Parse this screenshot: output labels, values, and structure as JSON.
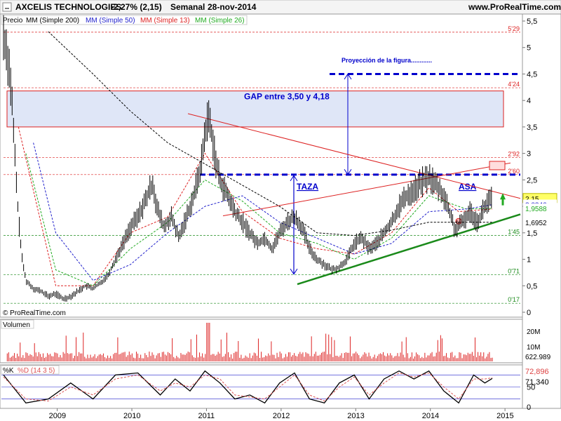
{
  "header": {
    "title": "AXCELIS TECHNOLOGIES",
    "change": "-2,27% (2,15)",
    "period": "Semanal",
    "date": "28-nov-2014",
    "site": "www.ProRealTime.com"
  },
  "legend_main": {
    "precio": "Precio",
    "mm200": "MM (Simple 200)",
    "mm50": "MM (Simple 50)",
    "mm13": "MM (Simple 13)",
    "mm26": "MM (Simple 26)"
  },
  "copyright": "© ProRealTime.com",
  "volume_label": "Volumen",
  "stoch_label_k": "%K",
  "stoch_label_d": "%D (14 3 5)",
  "colors": {
    "price": "#000000",
    "mm200": "#000000",
    "mm50": "#2222cc",
    "mm13": "#dd2222",
    "mm26": "#22aa22",
    "resistance": "#dd2222",
    "support": "#1a8a1a",
    "dashed_blue": "#0000cc",
    "gap_fill": "#dfe6f7",
    "gap_border": "#dd2222"
  },
  "chart_data": [
    {
      "type": "line",
      "panel": "price",
      "x_axis": {
        "labels": [
          "2009",
          "2010",
          "2011",
          "2012",
          "2013",
          "2014",
          "2015"
        ]
      },
      "y_axis": {
        "min": 0,
        "max": 5.5,
        "ticks": [
          "5,5",
          "5",
          "4,5",
          "4",
          "3,5",
          "3",
          "2,5",
          "2",
          "1,5",
          "1",
          "0,5",
          "0"
        ]
      },
      "price_series": [
        [
          2008.3,
          5.2
        ],
        [
          2008.35,
          4.9
        ],
        [
          2008.4,
          4.3
        ],
        [
          2008.45,
          3.0
        ],
        [
          2008.5,
          1.8
        ],
        [
          2008.55,
          1.0
        ],
        [
          2008.6,
          0.6
        ],
        [
          2008.7,
          0.45
        ],
        [
          2008.8,
          0.4
        ],
        [
          2008.9,
          0.3
        ],
        [
          2009.0,
          0.35
        ],
        [
          2009.1,
          0.25
        ],
        [
          2009.2,
          0.3
        ],
        [
          2009.3,
          0.4
        ],
        [
          2009.4,
          0.5
        ],
        [
          2009.5,
          0.45
        ],
        [
          2009.6,
          0.55
        ],
        [
          2009.7,
          0.7
        ],
        [
          2009.8,
          1.0
        ],
        [
          2009.9,
          1.3
        ],
        [
          2010.0,
          1.6
        ],
        [
          2010.1,
          1.8
        ],
        [
          2010.2,
          2.1
        ],
        [
          2010.3,
          2.45
        ],
        [
          2010.35,
          2.0
        ],
        [
          2010.45,
          1.6
        ],
        [
          2010.55,
          1.8
        ],
        [
          2010.65,
          1.4
        ],
        [
          2010.75,
          1.8
        ],
        [
          2010.85,
          2.2
        ],
        [
          2010.95,
          2.8
        ],
        [
          2011.0,
          3.4
        ],
        [
          2011.05,
          3.7
        ],
        [
          2011.1,
          3.3
        ],
        [
          2011.15,
          2.8
        ],
        [
          2011.2,
          2.5
        ],
        [
          2011.3,
          2.2
        ],
        [
          2011.4,
          1.9
        ],
        [
          2011.5,
          1.7
        ],
        [
          2011.6,
          1.5
        ],
        [
          2011.7,
          1.3
        ],
        [
          2011.8,
          1.4
        ],
        [
          2011.9,
          1.2
        ],
        [
          2012.0,
          1.5
        ],
        [
          2012.1,
          1.7
        ],
        [
          2012.2,
          1.8
        ],
        [
          2012.3,
          1.6
        ],
        [
          2012.4,
          1.2
        ],
        [
          2012.5,
          1.0
        ],
        [
          2012.6,
          0.9
        ],
        [
          2012.7,
          0.8
        ],
        [
          2012.8,
          0.85
        ],
        [
          2012.9,
          1.0
        ],
        [
          2013.0,
          1.3
        ],
        [
          2013.1,
          1.4
        ],
        [
          2013.2,
          1.2
        ],
        [
          2013.3,
          1.3
        ],
        [
          2013.4,
          1.5
        ],
        [
          2013.5,
          1.7
        ],
        [
          2013.6,
          2.0
        ],
        [
          2013.7,
          2.2
        ],
        [
          2013.8,
          2.3
        ],
        [
          2013.9,
          2.45
        ],
        [
          2014.0,
          2.55
        ],
        [
          2014.1,
          2.4
        ],
        [
          2014.2,
          2.2
        ],
        [
          2014.3,
          1.8
        ],
        [
          2014.35,
          1.55
        ],
        [
          2014.45,
          1.7
        ],
        [
          2014.55,
          1.9
        ],
        [
          2014.65,
          1.7
        ],
        [
          2014.75,
          2.0
        ],
        [
          2014.8,
          2.1
        ],
        [
          2014.85,
          2.15
        ]
      ],
      "sma_series": [
        {
          "name": "MM (Simple 13)",
          "values": [
            [
              2008.5,
              3.5
            ],
            [
              2009.0,
              0.5
            ],
            [
              2009.5,
              0.5
            ],
            [
              2010.0,
              1.5
            ],
            [
              2010.5,
              1.8
            ],
            [
              2011.0,
              3.0
            ],
            [
              2011.5,
              1.9
            ],
            [
              2012.0,
              1.4
            ],
            [
              2012.5,
              1.2
            ],
            [
              2013.0,
              1.1
            ],
            [
              2013.5,
              1.5
            ],
            [
              2014.0,
              2.35
            ],
            [
              2014.4,
              1.9
            ],
            [
              2014.85,
              1.95
            ]
          ]
        },
        {
          "name": "MM (Simple 26)",
          "values": [
            [
              2008.6,
              3.0
            ],
            [
              2009.0,
              0.8
            ],
            [
              2009.5,
              0.5
            ],
            [
              2010.0,
              1.2
            ],
            [
              2010.5,
              1.7
            ],
            [
              2011.0,
              2.5
            ],
            [
              2011.5,
              2.1
            ],
            [
              2012.0,
              1.5
            ],
            [
              2012.5,
              1.3
            ],
            [
              2013.0,
              1.0
            ],
            [
              2013.5,
              1.4
            ],
            [
              2014.0,
              2.2
            ],
            [
              2014.5,
              1.95
            ],
            [
              2014.85,
              1.96
            ]
          ]
        },
        {
          "name": "MM (Simple 50)",
          "values": [
            [
              2008.7,
              3.2
            ],
            [
              2009.0,
              1.5
            ],
            [
              2009.5,
              0.6
            ],
            [
              2010.0,
              0.9
            ],
            [
              2010.5,
              1.5
            ],
            [
              2011.0,
              2.0
            ],
            [
              2011.5,
              2.2
            ],
            [
              2012.0,
              1.7
            ],
            [
              2012.5,
              1.4
            ],
            [
              2013.0,
              1.1
            ],
            [
              2013.5,
              1.3
            ],
            [
              2014.0,
              1.9
            ],
            [
              2014.5,
              1.95
            ],
            [
              2014.85,
              2.03
            ]
          ]
        },
        {
          "name": "MM (Simple 200)",
          "values": [
            [
              2008.9,
              5.3
            ],
            [
              2009.5,
              4.5
            ],
            [
              2010.0,
              3.8
            ],
            [
              2010.5,
              3.2
            ],
            [
              2011.0,
              2.8
            ],
            [
              2011.5,
              2.4
            ],
            [
              2012.0,
              2.0
            ],
            [
              2012.5,
              1.5
            ],
            [
              2013.0,
              1.45
            ],
            [
              2013.5,
              1.55
            ],
            [
              2014.0,
              1.7
            ],
            [
              2014.5,
              1.7
            ],
            [
              2014.85,
              1.7
            ]
          ]
        }
      ],
      "level_labels": [
        {
          "value": 5.29,
          "label": "5'29"
        },
        {
          "value": 4.24,
          "label": "4'24"
        },
        {
          "value": 2.92,
          "label": "2'92"
        },
        {
          "value": 2.6,
          "label": "2'60"
        },
        {
          "value": 1.45,
          "label": "1'45"
        },
        {
          "value": 0.71,
          "label": "0'71"
        },
        {
          "value": 0.17,
          "label": "0'17"
        }
      ],
      "last_values": [
        {
          "value": 2.15,
          "label": "2,15",
          "bg": "#ffff66",
          "fg": "#000000"
        },
        {
          "value": 2.0346,
          "label": "2,0346",
          "bg": "#ffffff",
          "fg": "#2222cc"
        },
        {
          "value": 1.9588,
          "label": "1,9588",
          "bg": "#ffffff",
          "fg": "#22aa22"
        },
        {
          "value": 1.6952,
          "label": "1,6952",
          "bg": "#ffffff",
          "fg": "#000000"
        }
      ],
      "annotations": {
        "gap": {
          "text": "GAP entre 3,50 y 4,18",
          "low": 3.5,
          "high": 4.18
        },
        "projection": {
          "text": "Proyección de la figura............",
          "value": 4.5
        },
        "taza": "TAZA",
        "asa": "ASA"
      }
    },
    {
      "type": "bar",
      "panel": "volume",
      "y_axis": {
        "ticks": [
          "20M",
          "10M"
        ]
      },
      "last_value": "622.989"
    },
    {
      "type": "line",
      "panel": "stochastic",
      "series": [
        {
          "name": "%K",
          "values": [
            [
              2008.3,
              80
            ],
            [
              2008.6,
              10
            ],
            [
              2008.9,
              20
            ],
            [
              2009.2,
              60
            ],
            [
              2009.5,
              20
            ],
            [
              2009.8,
              80
            ],
            [
              2010.1,
              85
            ],
            [
              2010.4,
              30
            ],
            [
              2010.6,
              70
            ],
            [
              2010.8,
              40
            ],
            [
              2011.0,
              90
            ],
            [
              2011.2,
              60
            ],
            [
              2011.4,
              20
            ],
            [
              2011.6,
              30
            ],
            [
              2011.8,
              10
            ],
            [
              2012.0,
              60
            ],
            [
              2012.2,
              85
            ],
            [
              2012.4,
              20
            ],
            [
              2012.6,
              10
            ],
            [
              2012.8,
              60
            ],
            [
              2013.0,
              80
            ],
            [
              2013.2,
              20
            ],
            [
              2013.4,
              70
            ],
            [
              2013.6,
              90
            ],
            [
              2013.8,
              70
            ],
            [
              2014.0,
              90
            ],
            [
              2014.2,
              40
            ],
            [
              2014.4,
              10
            ],
            [
              2014.6,
              80
            ],
            [
              2014.75,
              60
            ],
            [
              2014.85,
              71.34
            ]
          ]
        },
        {
          "name": "%D (14 3 5)",
          "values": [
            [
              2008.3,
              75
            ],
            [
              2008.6,
              20
            ],
            [
              2008.9,
              15
            ],
            [
              2009.2,
              50
            ],
            [
              2009.5,
              30
            ],
            [
              2009.8,
              70
            ],
            [
              2010.1,
              80
            ],
            [
              2010.4,
              40
            ],
            [
              2010.6,
              60
            ],
            [
              2010.8,
              50
            ],
            [
              2011.0,
              80
            ],
            [
              2011.2,
              70
            ],
            [
              2011.4,
              30
            ],
            [
              2011.6,
              25
            ],
            [
              2011.8,
              20
            ],
            [
              2012.0,
              50
            ],
            [
              2012.2,
              80
            ],
            [
              2012.4,
              30
            ],
            [
              2012.6,
              15
            ],
            [
              2012.8,
              50
            ],
            [
              2013.0,
              75
            ],
            [
              2013.2,
              30
            ],
            [
              2013.4,
              60
            ],
            [
              2013.6,
              85
            ],
            [
              2013.8,
              75
            ],
            [
              2014.0,
              85
            ],
            [
              2014.2,
              50
            ],
            [
              2014.4,
              20
            ],
            [
              2014.6,
              70
            ],
            [
              2014.75,
              70
            ],
            [
              2014.85,
              72.896
            ]
          ]
        }
      ],
      "last_values": [
        {
          "value": 72.896,
          "label": "72,896",
          "fg": "#dd4444"
        },
        {
          "value": 71.34,
          "label": "71,340",
          "fg": "#000000"
        }
      ],
      "y_axis": {
        "ticks": [
          "50",
          "0"
        ]
      }
    }
  ]
}
